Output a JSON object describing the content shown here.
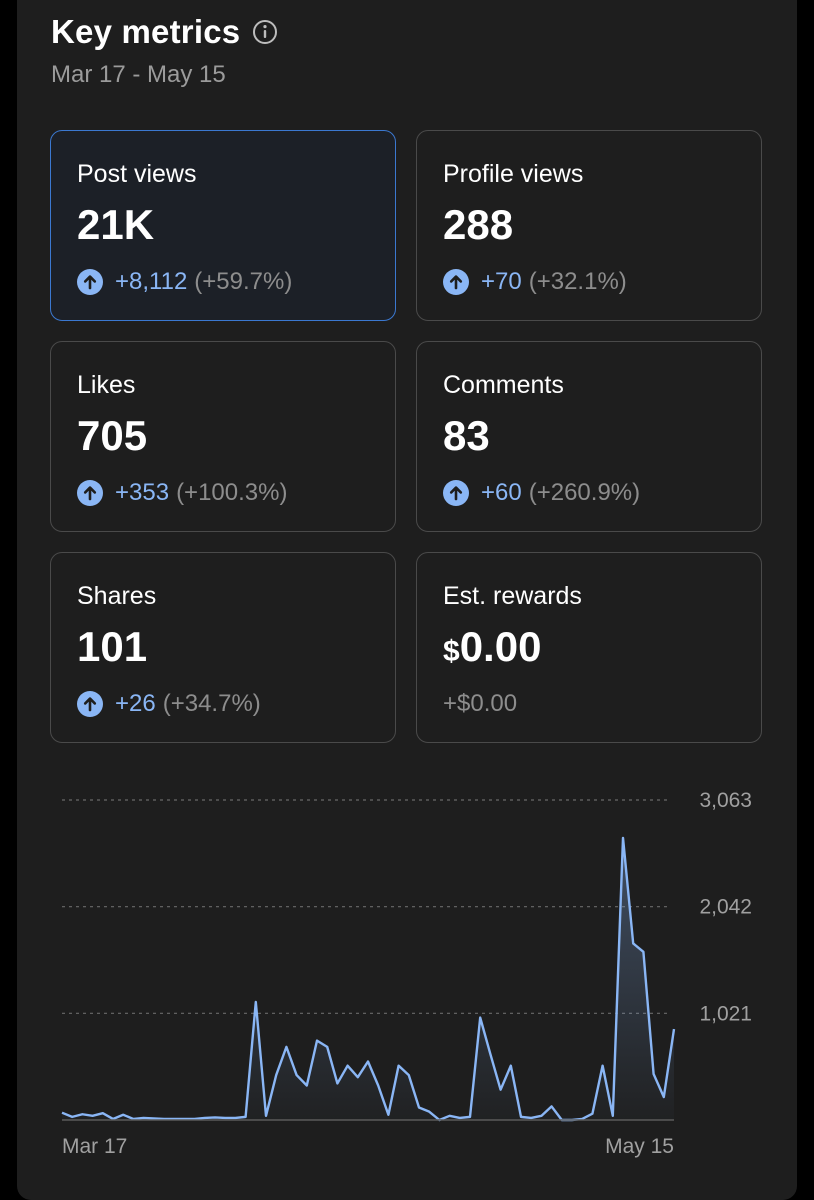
{
  "header": {
    "title": "Key metrics",
    "date_range": "Mar 17 - May 15"
  },
  "metrics": [
    {
      "label": "Post views",
      "value": "21K",
      "delta": "+8,112",
      "pct": "(+59.7%)",
      "active": true
    },
    {
      "label": "Profile views",
      "value": "288",
      "delta": "+70",
      "pct": "(+32.1%)"
    },
    {
      "label": "Likes",
      "value": "705",
      "delta": "+353",
      "pct": "(+100.3%)"
    },
    {
      "label": "Comments",
      "value": "83",
      "delta": "+60",
      "pct": "(+260.9%)"
    },
    {
      "label": "Shares",
      "value": "101",
      "delta": "+26",
      "pct": "(+34.7%)"
    },
    {
      "label": "Est. rewards",
      "currency": "$",
      "value": "0.00",
      "change_text": "+$0.00"
    }
  ],
  "icons": {
    "info": "info-icon",
    "arrow": "arrow-up-icon"
  },
  "colors": {
    "accent": "#8ab6f5",
    "active_border": "#3b78d0",
    "panel": "#1e1e1e",
    "muted": "#9b9b9b"
  },
  "chart_data": {
    "type": "area",
    "series": [
      {
        "values": [
          70,
          30,
          55,
          40,
          65,
          10,
          50,
          10,
          20,
          15,
          10,
          10,
          10,
          10,
          20,
          25,
          20,
          20,
          30,
          1130,
          40,
          430,
          700,
          430,
          330,
          760,
          700,
          350,
          520,
          410,
          560,
          330,
          50,
          520,
          430,
          120,
          80,
          0,
          40,
          20,
          30,
          980,
          630,
          290,
          520,
          30,
          20,
          40,
          130,
          0,
          0,
          10,
          60,
          520,
          40,
          2700,
          1690,
          1610,
          440,
          220,
          870
        ]
      }
    ],
    "x_tick_labels": [
      "Mar 17",
      "May 15"
    ],
    "y_ticks": [
      1021,
      2042,
      3063
    ],
    "y_tick_labels": [
      "1,021",
      "2,042",
      "3,063"
    ],
    "ylim": [
      0,
      3063
    ],
    "grid": true
  }
}
